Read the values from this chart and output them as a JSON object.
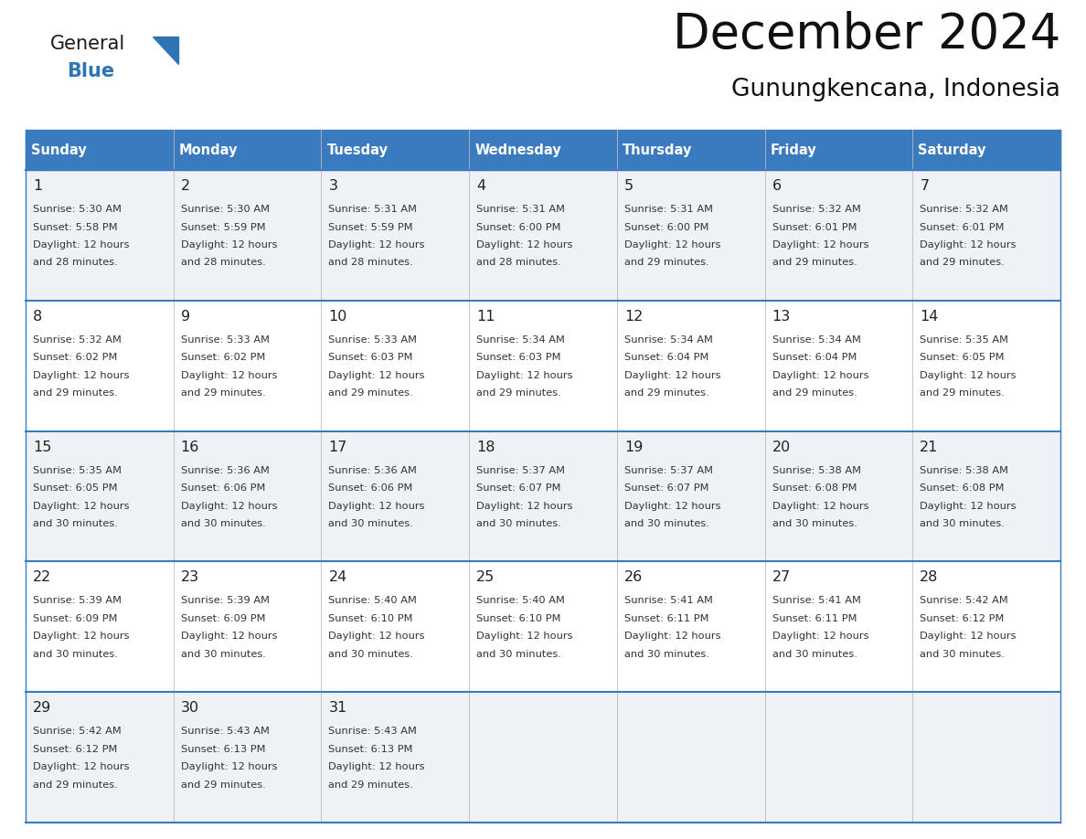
{
  "title": "December 2024",
  "subtitle": "Gunungkencana, Indonesia",
  "days_of_week": [
    "Sunday",
    "Monday",
    "Tuesday",
    "Wednesday",
    "Thursday",
    "Friday",
    "Saturday"
  ],
  "header_bg_color": "#3a7abf",
  "header_text_color": "#ffffff",
  "row_bg_even": "#eef2f7",
  "row_bg_odd": "#ffffff",
  "day_number_color": "#222222",
  "text_color": "#333333",
  "border_color": "#3a7abf",
  "logo_general_color": "#1a1a1a",
  "logo_blue_color": "#2e75b6",
  "calendar_data": [
    [
      {
        "day": 1,
        "sunrise": "5:30 AM",
        "sunset": "5:58 PM",
        "daylight_hours": 12,
        "daylight_minutes": 28
      },
      {
        "day": 2,
        "sunrise": "5:30 AM",
        "sunset": "5:59 PM",
        "daylight_hours": 12,
        "daylight_minutes": 28
      },
      {
        "day": 3,
        "sunrise": "5:31 AM",
        "sunset": "5:59 PM",
        "daylight_hours": 12,
        "daylight_minutes": 28
      },
      {
        "day": 4,
        "sunrise": "5:31 AM",
        "sunset": "6:00 PM",
        "daylight_hours": 12,
        "daylight_minutes": 28
      },
      {
        "day": 5,
        "sunrise": "5:31 AM",
        "sunset": "6:00 PM",
        "daylight_hours": 12,
        "daylight_minutes": 29
      },
      {
        "day": 6,
        "sunrise": "5:32 AM",
        "sunset": "6:01 PM",
        "daylight_hours": 12,
        "daylight_minutes": 29
      },
      {
        "day": 7,
        "sunrise": "5:32 AM",
        "sunset": "6:01 PM",
        "daylight_hours": 12,
        "daylight_minutes": 29
      }
    ],
    [
      {
        "day": 8,
        "sunrise": "5:32 AM",
        "sunset": "6:02 PM",
        "daylight_hours": 12,
        "daylight_minutes": 29
      },
      {
        "day": 9,
        "sunrise": "5:33 AM",
        "sunset": "6:02 PM",
        "daylight_hours": 12,
        "daylight_minutes": 29
      },
      {
        "day": 10,
        "sunrise": "5:33 AM",
        "sunset": "6:03 PM",
        "daylight_hours": 12,
        "daylight_minutes": 29
      },
      {
        "day": 11,
        "sunrise": "5:34 AM",
        "sunset": "6:03 PM",
        "daylight_hours": 12,
        "daylight_minutes": 29
      },
      {
        "day": 12,
        "sunrise": "5:34 AM",
        "sunset": "6:04 PM",
        "daylight_hours": 12,
        "daylight_minutes": 29
      },
      {
        "day": 13,
        "sunrise": "5:34 AM",
        "sunset": "6:04 PM",
        "daylight_hours": 12,
        "daylight_minutes": 29
      },
      {
        "day": 14,
        "sunrise": "5:35 AM",
        "sunset": "6:05 PM",
        "daylight_hours": 12,
        "daylight_minutes": 29
      }
    ],
    [
      {
        "day": 15,
        "sunrise": "5:35 AM",
        "sunset": "6:05 PM",
        "daylight_hours": 12,
        "daylight_minutes": 30
      },
      {
        "day": 16,
        "sunrise": "5:36 AM",
        "sunset": "6:06 PM",
        "daylight_hours": 12,
        "daylight_minutes": 30
      },
      {
        "day": 17,
        "sunrise": "5:36 AM",
        "sunset": "6:06 PM",
        "daylight_hours": 12,
        "daylight_minutes": 30
      },
      {
        "day": 18,
        "sunrise": "5:37 AM",
        "sunset": "6:07 PM",
        "daylight_hours": 12,
        "daylight_minutes": 30
      },
      {
        "day": 19,
        "sunrise": "5:37 AM",
        "sunset": "6:07 PM",
        "daylight_hours": 12,
        "daylight_minutes": 30
      },
      {
        "day": 20,
        "sunrise": "5:38 AM",
        "sunset": "6:08 PM",
        "daylight_hours": 12,
        "daylight_minutes": 30
      },
      {
        "day": 21,
        "sunrise": "5:38 AM",
        "sunset": "6:08 PM",
        "daylight_hours": 12,
        "daylight_minutes": 30
      }
    ],
    [
      {
        "day": 22,
        "sunrise": "5:39 AM",
        "sunset": "6:09 PM",
        "daylight_hours": 12,
        "daylight_minutes": 30
      },
      {
        "day": 23,
        "sunrise": "5:39 AM",
        "sunset": "6:09 PM",
        "daylight_hours": 12,
        "daylight_minutes": 30
      },
      {
        "day": 24,
        "sunrise": "5:40 AM",
        "sunset": "6:10 PM",
        "daylight_hours": 12,
        "daylight_minutes": 30
      },
      {
        "day": 25,
        "sunrise": "5:40 AM",
        "sunset": "6:10 PM",
        "daylight_hours": 12,
        "daylight_minutes": 30
      },
      {
        "day": 26,
        "sunrise": "5:41 AM",
        "sunset": "6:11 PM",
        "daylight_hours": 12,
        "daylight_minutes": 30
      },
      {
        "day": 27,
        "sunrise": "5:41 AM",
        "sunset": "6:11 PM",
        "daylight_hours": 12,
        "daylight_minutes": 30
      },
      {
        "day": 28,
        "sunrise": "5:42 AM",
        "sunset": "6:12 PM",
        "daylight_hours": 12,
        "daylight_minutes": 30
      }
    ],
    [
      {
        "day": 29,
        "sunrise": "5:42 AM",
        "sunset": "6:12 PM",
        "daylight_hours": 12,
        "daylight_minutes": 29
      },
      {
        "day": 30,
        "sunrise": "5:43 AM",
        "sunset": "6:13 PM",
        "daylight_hours": 12,
        "daylight_minutes": 29
      },
      {
        "day": 31,
        "sunrise": "5:43 AM",
        "sunset": "6:13 PM",
        "daylight_hours": 12,
        "daylight_minutes": 29
      },
      null,
      null,
      null,
      null
    ]
  ],
  "fig_width": 11.88,
  "fig_height": 9.18
}
